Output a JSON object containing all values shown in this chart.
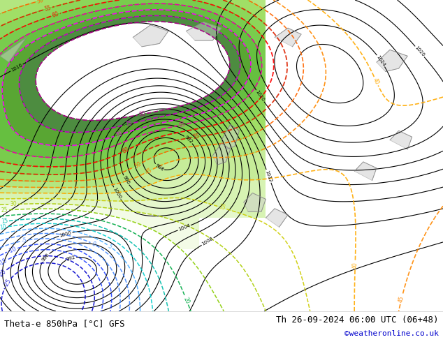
{
  "title_left": "Theta-e 850hPa [°C] GFS",
  "title_right": "Th 26-09-2024 06:00 UTC (06+48)",
  "copyright": "©weatheronline.co.uk",
  "bg_color": "#ffffff",
  "fig_width": 6.34,
  "fig_height": 4.9,
  "dpi": 100,
  "footer_bg": "#ffffff",
  "footer_text_color_left": "#000000",
  "footer_text_color_right": "#000000",
  "footer_copyright_color": "#0000cc",
  "theta_e_colors": {
    "magenta": "#ff00ff",
    "dark_magenta": "#cc00cc",
    "red": "#ff0000",
    "dark_red": "#cc0000",
    "orange": "#ff8800",
    "dark_orange": "#ff6600",
    "yellow_green": "#aacc00",
    "green_label": "#008800",
    "cyan": "#00cccc",
    "teal": "#008888",
    "blue": "#4488ff",
    "dark_blue": "#0044ff"
  }
}
